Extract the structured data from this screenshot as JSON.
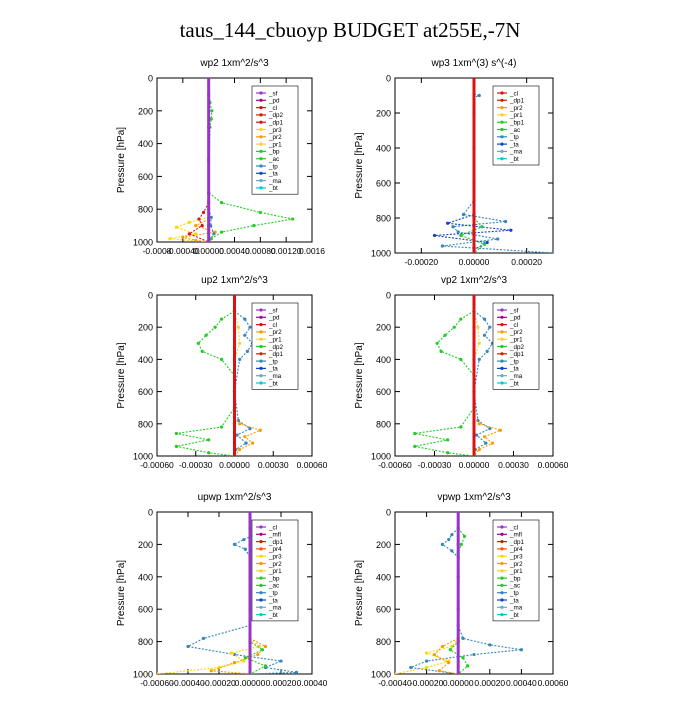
{
  "figure": {
    "title": "taus_144_cbuoyp  BUDGET at255E,-7N"
  },
  "chart_data": [
    {
      "type": "line",
      "title": "wp2  1xm^2/s^3",
      "ylabel": "Pressure [hPa]",
      "xlim": [
        -0.0008,
        0.0016
      ],
      "ylim": [
        1000,
        0
      ],
      "xticks": [
        "-0.0008",
        "-0.00040",
        "0.00000",
        "0.00040",
        "0.00080",
        "0.00120",
        "0.0016"
      ],
      "xtick_values": [
        -0.0008,
        -0.0004,
        0,
        0.0004,
        0.0008,
        0.0012,
        0.0016
      ],
      "yticks": [
        "0",
        "200",
        "400",
        "600",
        "800",
        "1000"
      ],
      "ytick_values": [
        0,
        200,
        400,
        600,
        800,
        1000
      ],
      "legend": [
        "_sf",
        "_pd",
        "_cl",
        "_dp2",
        "_dp1",
        "_pr3",
        "_pr2",
        "_pr1",
        "_bp",
        "_ac",
        "_tp",
        "_ta",
        "_ma",
        "_bt"
      ],
      "series": [
        {
          "name": "_pr3",
          "color": "#ffd700",
          "y": [
            850,
            880,
            910,
            950,
            980,
            1000
          ],
          "x": [
            0,
            -0.0003,
            -0.0005,
            -0.0002,
            -0.0006,
            0
          ]
        },
        {
          "name": "_pr2",
          "color": "#ff9900",
          "y": [
            860,
            900,
            940,
            970,
            990,
            1000
          ],
          "x": [
            0,
            -0.0002,
            0.0001,
            -0.0004,
            -0.0002,
            0
          ]
        },
        {
          "name": "_bp",
          "color": "#22cc22",
          "y": [
            0,
            150,
            200,
            250,
            300,
            700,
            760,
            820,
            860,
            900,
            940,
            980,
            1000
          ],
          "x": [
            0,
            2e-05,
            5e-05,
            4e-05,
            2e-05,
            0,
            0.0002,
            0.0008,
            0.0013,
            0.0007,
            0.0002,
            4e-05,
            0
          ]
        },
        {
          "name": "_dp1",
          "color": "#dd1111",
          "y": [
            760,
            820,
            860,
            900,
            950,
            1000
          ],
          "x": [
            0,
            -8e-05,
            -0.00015,
            -0.0001,
            -0.0003,
            0
          ]
        },
        {
          "name": "_tp",
          "color": "#3388bb",
          "y": [
            800,
            850,
            900,
            950,
            1000
          ],
          "x": [
            0,
            4e-05,
            3e-05,
            8e-05,
            0
          ]
        },
        {
          "name": "_sf",
          "color": "#9933cc",
          "y": [
            0,
            100,
            300,
            500,
            700,
            900,
            1000
          ],
          "x": [
            0,
            0,
            0,
            0,
            0,
            0,
            0
          ]
        }
      ],
      "legend_colors": [
        "#9933cc",
        "#aa0088",
        "#dd1111",
        "#cc2200",
        "#dd1111",
        "#ffd700",
        "#ff9900",
        "#ffcc33",
        "#22cc22",
        "#22cc22",
        "#3388bb",
        "#1144cc",
        "#66aacc",
        "#00cccc"
      ]
    },
    {
      "type": "line",
      "title": "wp3  1xm^(3) s^(-4)",
      "ylabel": "Pressure [hPa]",
      "xlim": [
        -0.0003,
        0.0003
      ],
      "ylim": [
        1000,
        0
      ],
      "xticks": [
        "-0.00020",
        "0.00000",
        "0.00020"
      ],
      "xtick_values": [
        -0.0002,
        0,
        0.0002
      ],
      "yticks": [
        "0",
        "200",
        "400",
        "600",
        "800",
        "1000"
      ],
      "ytick_values": [
        0,
        200,
        400,
        600,
        800,
        1000
      ],
      "legend": [
        "_cl",
        "_dp1",
        "_pr2",
        "_pr1",
        "_bp1",
        "_ac",
        "_tp",
        "_ta",
        "_ma",
        "_bt"
      ],
      "series": [
        {
          "name": "_tp",
          "color": "#3388bb",
          "y": [
            90,
            100,
            110,
            700,
            780,
            820,
            850,
            880,
            920,
            960,
            1000
          ],
          "x": [
            0,
            2e-05,
            0,
            0,
            -4e-05,
            0.00012,
            -8e-05,
            -6e-05,
            9e-05,
            -0.00012,
            0.0003
          ]
        },
        {
          "name": "_ta",
          "color": "#1144cc",
          "y": [
            780,
            830,
            870,
            900,
            940,
            980
          ],
          "x": [
            0,
            -0.0001,
            0.00014,
            -0.00015,
            5e-05,
            0
          ]
        },
        {
          "name": "_ac",
          "color": "#22cc22",
          "y": [
            800,
            850,
            900,
            950,
            1000
          ],
          "x": [
            0,
            3e-05,
            -5e-05,
            4e-05,
            0
          ]
        },
        {
          "name": "_cl",
          "color": "#dd1111",
          "y": [
            0,
            200,
            400,
            600,
            800,
            1000
          ],
          "x": [
            0,
            0,
            0,
            0,
            0,
            0
          ]
        }
      ],
      "legend_colors": [
        "#dd1111",
        "#cc2200",
        "#ff9900",
        "#ffcc33",
        "#22cc22",
        "#22cc22",
        "#3388bb",
        "#1144cc",
        "#66aacc",
        "#00cccc"
      ]
    },
    {
      "type": "line",
      "title": "up2  1xm^2/s^3",
      "ylabel": "Pressure [hPa]",
      "xlim": [
        -0.0006,
        0.0006
      ],
      "ylim": [
        1000,
        0
      ],
      "xticks": [
        "-0.00060",
        "-0.00030",
        "0.00000",
        "0.00030",
        "0.00060"
      ],
      "xtick_values": [
        -0.0006,
        -0.0003,
        0,
        0.0003,
        0.0006
      ],
      "yticks": [
        "0",
        "200",
        "400",
        "600",
        "800",
        "1000"
      ],
      "ytick_values": [
        0,
        200,
        400,
        600,
        800,
        1000
      ],
      "legend": [
        "_sf",
        "_pd",
        "_cl",
        "_pr2",
        "_pr1",
        "_dp2",
        "_dp1",
        "_tp",
        "_ta",
        "_ma",
        "_bt"
      ],
      "series": [
        {
          "name": "_dp2",
          "color": "#22cc22",
          "y": [
            100,
            150,
            200,
            250,
            300,
            350,
            400,
            500,
            700,
            820,
            860,
            900,
            940,
            980,
            1000
          ],
          "x": [
            0,
            -0.0001,
            -0.00015,
            -0.00022,
            -0.00028,
            -0.00025,
            -0.0001,
            0,
            0,
            -0.0001,
            -0.00045,
            -0.0002,
            -0.00045,
            -0.0002,
            0
          ]
        },
        {
          "name": "_tp",
          "color": "#3388bb",
          "y": [
            100,
            150,
            200,
            250,
            300,
            350,
            400,
            600,
            780,
            830,
            870,
            920,
            960,
            1000
          ],
          "x": [
            0,
            8e-05,
            0.00012,
            8e-05,
            0.00014,
            0.0001,
            4e-05,
            0,
            3e-05,
            0.00012,
            2e-05,
            9e-05,
            1e-05,
            0
          ]
        },
        {
          "name": "_pr2",
          "color": "#ff9900",
          "y": [
            760,
            800,
            840,
            880,
            920,
            960,
            1000
          ],
          "x": [
            0,
            4e-05,
            0.0002,
            8e-05,
            0.00014,
            4e-05,
            0
          ]
        },
        {
          "name": "_pr1",
          "color": "#ffcc33",
          "y": [
            100,
            200,
            300,
            400
          ],
          "x": [
            0,
            3e-05,
            4e-05,
            0
          ]
        },
        {
          "name": "_cl",
          "color": "#dd1111",
          "y": [
            0,
            200,
            400,
            600,
            800,
            1000
          ],
          "x": [
            0,
            0,
            0,
            0,
            0,
            0
          ]
        }
      ],
      "legend_colors": [
        "#9933cc",
        "#aa0088",
        "#dd1111",
        "#ff9900",
        "#ffcc33",
        "#22cc22",
        "#cc2200",
        "#3388bb",
        "#1144cc",
        "#66aacc",
        "#00cccc"
      ]
    },
    {
      "type": "line",
      "title": "vp2  1xm^2/s^3",
      "ylabel": "Pressure [hPa]",
      "xlim": [
        -0.0006,
        0.0006
      ],
      "ylim": [
        1000,
        0
      ],
      "xticks": [
        "-0.00060",
        "-0.00030",
        "0.00000",
        "0.00030",
        "0.00060"
      ],
      "xtick_values": [
        -0.0006,
        -0.0003,
        0,
        0.0003,
        0.0006
      ],
      "yticks": [
        "0",
        "200",
        "400",
        "600",
        "800",
        "1000"
      ],
      "ytick_values": [
        0,
        200,
        400,
        600,
        800,
        1000
      ],
      "legend": [
        "_sf",
        "_pd",
        "_cl",
        "_pr2",
        "_pr1",
        "_dp2",
        "_dp1",
        "_tp",
        "_ta",
        "_ma",
        "_bt"
      ],
      "series": [
        {
          "name": "_dp2",
          "color": "#22cc22",
          "y": [
            100,
            150,
            200,
            250,
            300,
            350,
            400,
            500,
            700,
            820,
            860,
            900,
            940,
            980,
            1000
          ],
          "x": [
            0,
            -0.0001,
            -0.00015,
            -0.00022,
            -0.00028,
            -0.00025,
            -0.0001,
            0,
            0,
            -0.0001,
            -0.00045,
            -0.0002,
            -0.00045,
            -0.0002,
            0
          ]
        },
        {
          "name": "_tp",
          "color": "#3388bb",
          "y": [
            100,
            150,
            200,
            250,
            300,
            350,
            400,
            600,
            780,
            830,
            870,
            920,
            960,
            1000
          ],
          "x": [
            0,
            8e-05,
            0.00012,
            8e-05,
            0.00014,
            0.0001,
            4e-05,
            0,
            3e-05,
            0.00012,
            2e-05,
            9e-05,
            1e-05,
            0
          ]
        },
        {
          "name": "_pr2",
          "color": "#ff9900",
          "y": [
            760,
            800,
            840,
            880,
            920,
            960,
            1000
          ],
          "x": [
            0,
            4e-05,
            0.0002,
            8e-05,
            0.00014,
            4e-05,
            0
          ]
        },
        {
          "name": "_pr1",
          "color": "#ffcc33",
          "y": [
            100,
            200,
            300,
            400
          ],
          "x": [
            0,
            3e-05,
            4e-05,
            0
          ]
        },
        {
          "name": "_cl",
          "color": "#dd1111",
          "y": [
            0,
            200,
            400,
            600,
            800,
            1000
          ],
          "x": [
            0,
            0,
            0,
            0,
            0,
            0
          ]
        }
      ],
      "legend_colors": [
        "#9933cc",
        "#aa0088",
        "#dd1111",
        "#ff9900",
        "#ffcc33",
        "#22cc22",
        "#cc2200",
        "#3388bb",
        "#1144cc",
        "#66aacc",
        "#00cccc"
      ]
    },
    {
      "type": "line",
      "title": "upwp  1xm^2/s^3",
      "ylabel": "Pressure [hPa]",
      "xlim": [
        -0.0006,
        0.0004
      ],
      "ylim": [
        1000,
        0
      ],
      "xticks": [
        "-0.00060",
        "-0.00040",
        "-0.00020",
        "0.00000",
        "0.00020",
        "0.00040"
      ],
      "xtick_values": [
        -0.0006,
        -0.0004,
        -0.0002,
        0,
        0.0002,
        0.0004
      ],
      "yticks": [
        "0",
        "200",
        "400",
        "600",
        "800",
        "1000"
      ],
      "ytick_values": [
        0,
        200,
        400,
        600,
        800,
        1000
      ],
      "legend": [
        "_cl",
        "_mfl",
        "_dp1",
        "_pr4",
        "_pr3",
        "_pr2",
        "_pr1",
        "_bp",
        "_ac",
        "_tp",
        "_ta",
        "_ma",
        "_bt"
      ],
      "series": [
        {
          "name": "_tp",
          "color": "#3388bb",
          "y": [
            100,
            140,
            170,
            200,
            230,
            280,
            700,
            780,
            830,
            880,
            920,
            960,
            990,
            1000
          ],
          "x": [
            0,
            3e-05,
            -4e-05,
            -0.0001,
            -3e-05,
            0,
            0,
            -0.0003,
            -0.0004,
            -0.0001,
            0.0002,
            0.0001,
            0.0003,
            0
          ]
        },
        {
          "name": "_pr3",
          "color": "#ffd700",
          "y": [
            780,
            830,
            870,
            920,
            960,
            1000
          ],
          "x": [
            0,
            6e-05,
            -0.00012,
            -4e-05,
            -0.0002,
            -0.0006
          ]
        },
        {
          "name": "_pr2",
          "color": "#ff9900",
          "y": [
            780,
            830,
            880,
            930,
            980,
            1000
          ],
          "x": [
            0,
            0.0001,
            5e-05,
            -0.0001,
            -0.00025,
            0
          ]
        },
        {
          "name": "_bp",
          "color": "#22cc22",
          "y": [
            100,
            150,
            200,
            250,
            800,
            850,
            900,
            950,
            1000
          ],
          "x": [
            0,
            4e-05,
            8e-05,
            0,
            0,
            8e-05,
            -3e-05,
            0.0001,
            0
          ]
        },
        {
          "name": "_cl",
          "color": "#9933cc",
          "y": [
            0,
            200,
            400,
            600,
            800,
            1000
          ],
          "x": [
            0,
            0,
            0,
            0,
            0,
            0
          ]
        }
      ],
      "legend_colors": [
        "#9933cc",
        "#aa0088",
        "#cc2200",
        "#ff5500",
        "#ffd700",
        "#ff9900",
        "#ffcc33",
        "#22cc22",
        "#22cc22",
        "#3388bb",
        "#1144cc",
        "#66aacc",
        "#00cccc"
      ]
    },
    {
      "type": "line",
      "title": "vpwp  1xm^2/s^3",
      "ylabel": "Pressure [hPa]",
      "xlim": [
        -0.0004,
        0.0006
      ],
      "ylim": [
        1000,
        0
      ],
      "xticks": [
        "-0.00040",
        "-0.00020",
        "0.00000",
        "0.00020",
        "0.00040",
        "0.00060"
      ],
      "xtick_values": [
        -0.0004,
        -0.0002,
        0,
        0.0002,
        0.0004,
        0.0006
      ],
      "yticks": [
        "0",
        "200",
        "400",
        "600",
        "800",
        "1000"
      ],
      "ytick_values": [
        0,
        200,
        400,
        600,
        800,
        1000
      ],
      "legend": [
        "_cl",
        "_mfl",
        "_dp1",
        "_pr4",
        "_pr3",
        "_pr2",
        "_pr1",
        "_bp",
        "_ac",
        "_tp",
        "_ta",
        "_ma",
        "_bt"
      ],
      "series": [
        {
          "name": "_tp",
          "color": "#3388bb",
          "y": [
            100,
            140,
            170,
            200,
            240,
            280,
            700,
            780,
            820,
            850,
            880,
            920,
            960,
            1000
          ],
          "x": [
            0,
            -4e-05,
            -6e-05,
            -0.0001,
            -4e-05,
            0,
            0,
            3e-05,
            0.0002,
            0.0004,
            0.0001,
            -0.0002,
            -0.0003,
            0
          ]
        },
        {
          "name": "_pr3",
          "color": "#ffd700",
          "y": [
            780,
            830,
            870,
            920,
            960,
            1000
          ],
          "x": [
            0,
            -4e-05,
            -0.0002,
            -6e-05,
            -0.0002,
            -0.0004
          ]
        },
        {
          "name": "_pr2",
          "color": "#ff9900",
          "y": [
            780,
            830,
            880,
            930,
            980,
            1000
          ],
          "x": [
            0,
            -0.0001,
            -0.00015,
            -6e-05,
            -0.00012,
            0
          ]
        },
        {
          "name": "_bp",
          "color": "#22cc22",
          "y": [
            100,
            150,
            200,
            250,
            800,
            850,
            900,
            950,
            1000
          ],
          "x": [
            0,
            4e-05,
            2e-05,
            0,
            0,
            -5e-05,
            3e-05,
            6e-05,
            0
          ]
        },
        {
          "name": "_cl",
          "color": "#9933cc",
          "y": [
            0,
            200,
            400,
            600,
            800,
            1000
          ],
          "x": [
            0,
            0,
            0,
            0,
            0,
            0
          ]
        }
      ],
      "legend_colors": [
        "#9933cc",
        "#aa0088",
        "#cc2200",
        "#ff5500",
        "#ffd700",
        "#ff9900",
        "#ffcc33",
        "#22cc22",
        "#22cc22",
        "#3388bb",
        "#1144cc",
        "#66aacc",
        "#00cccc"
      ]
    }
  ]
}
